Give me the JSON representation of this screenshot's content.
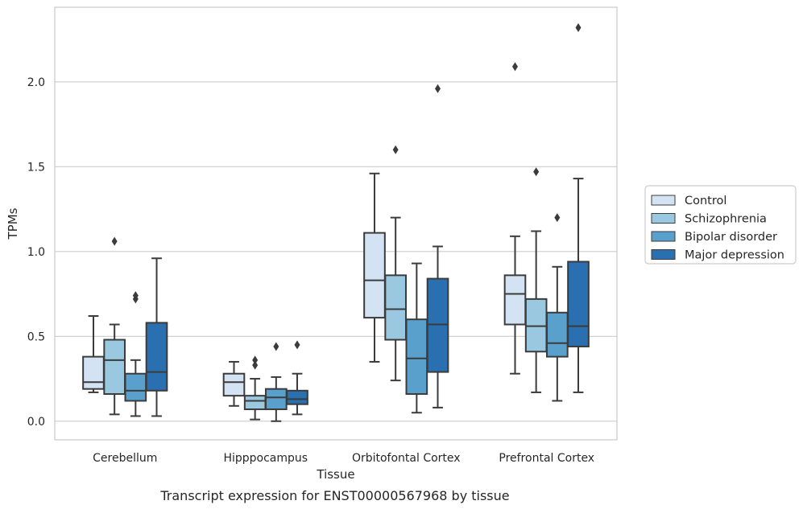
{
  "chart_data": {
    "type": "box",
    "xlabel": "Tissue",
    "ylabel": "TPMs",
    "caption": "Transcript expression for ENST00000567968 by tissue",
    "ylim": [
      -0.11,
      2.44
    ],
    "yticks": [
      0.0,
      0.5,
      1.0,
      1.5,
      2.0
    ],
    "ytick_labels": [
      "0.0",
      "0.5",
      "1.0",
      "1.5",
      "2.0"
    ],
    "grid": "horizontal",
    "legend_position": "right",
    "categories": [
      "Cerebellum",
      "Hipppocampus",
      "Orbitofontal Cortex",
      "Prefrontal Cortex"
    ],
    "series": [
      {
        "name": "Control",
        "color": "#d3e3f3",
        "boxes": [
          {
            "whisker_low": 0.17,
            "q1": 0.19,
            "median": 0.23,
            "q3": 0.38,
            "whisker_high": 0.62,
            "outliers": []
          },
          {
            "whisker_low": 0.09,
            "q1": 0.15,
            "median": 0.23,
            "q3": 0.28,
            "whisker_high": 0.35,
            "outliers": []
          },
          {
            "whisker_low": 0.35,
            "q1": 0.61,
            "median": 0.83,
            "q3": 1.11,
            "whisker_high": 1.46,
            "outliers": []
          },
          {
            "whisker_low": 0.28,
            "q1": 0.57,
            "median": 0.75,
            "q3": 0.86,
            "whisker_high": 1.09,
            "outliers": [
              2.09
            ]
          }
        ]
      },
      {
        "name": "Schizophrenia",
        "color": "#9ac8e0",
        "boxes": [
          {
            "whisker_low": 0.04,
            "q1": 0.16,
            "median": 0.36,
            "q3": 0.48,
            "whisker_high": 0.57,
            "outliers": [
              1.06
            ]
          },
          {
            "whisker_low": 0.01,
            "q1": 0.07,
            "median": 0.12,
            "q3": 0.15,
            "whisker_high": 0.25,
            "outliers": [
              0.33,
              0.36
            ]
          },
          {
            "whisker_low": 0.24,
            "q1": 0.48,
            "median": 0.66,
            "q3": 0.86,
            "whisker_high": 1.2,
            "outliers": [
              1.6
            ]
          },
          {
            "whisker_low": 0.17,
            "q1": 0.41,
            "median": 0.56,
            "q3": 0.72,
            "whisker_high": 1.12,
            "outliers": [
              1.47
            ]
          }
        ]
      },
      {
        "name": "Bipolar disorder",
        "color": "#5aa0cd",
        "boxes": [
          {
            "whisker_low": 0.03,
            "q1": 0.12,
            "median": 0.18,
            "q3": 0.28,
            "whisker_high": 0.36,
            "outliers": [
              0.72,
              0.74
            ]
          },
          {
            "whisker_low": 0.0,
            "q1": 0.07,
            "median": 0.14,
            "q3": 0.19,
            "whisker_high": 0.26,
            "outliers": [
              0.44
            ]
          },
          {
            "whisker_low": 0.05,
            "q1": 0.16,
            "median": 0.37,
            "q3": 0.6,
            "whisker_high": 0.93,
            "outliers": []
          },
          {
            "whisker_low": 0.12,
            "q1": 0.38,
            "median": 0.46,
            "q3": 0.64,
            "whisker_high": 0.91,
            "outliers": [
              1.2
            ]
          }
        ]
      },
      {
        "name": "Major depression",
        "color": "#2a6fb0",
        "boxes": [
          {
            "whisker_low": 0.03,
            "q1": 0.18,
            "median": 0.29,
            "q3": 0.58,
            "whisker_high": 0.96,
            "outliers": []
          },
          {
            "whisker_low": 0.04,
            "q1": 0.1,
            "median": 0.13,
            "q3": 0.18,
            "whisker_high": 0.28,
            "outliers": [
              0.45
            ]
          },
          {
            "whisker_low": 0.08,
            "q1": 0.29,
            "median": 0.57,
            "q3": 0.84,
            "whisker_high": 1.03,
            "outliers": [
              1.96
            ]
          },
          {
            "whisker_low": 0.17,
            "q1": 0.44,
            "median": 0.56,
            "q3": 0.94,
            "whisker_high": 1.43,
            "outliers": [
              2.32
            ]
          }
        ]
      }
    ]
  }
}
